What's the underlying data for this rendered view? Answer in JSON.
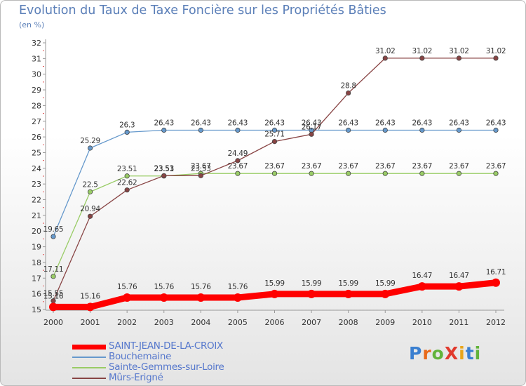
{
  "title": "Evolution du Taux de Taxe Foncière sur les Propriétés Bâties",
  "unit_label": "(en %)",
  "logo": {
    "text": "ProXiti",
    "letters": [
      "P",
      "r",
      "o",
      "X",
      "i",
      "t",
      "i"
    ],
    "colors": [
      "#3a7fd0",
      "#e96a1a",
      "#62b33b",
      "#e13a2e",
      "#e9a51a",
      "#3a7fd0",
      "#62b33b"
    ]
  },
  "chart_data": {
    "type": "line",
    "title": "Evolution du Taux de Taxe Foncière sur les Propriétés Bâties",
    "ylabel": "(en %)",
    "xlabel": "",
    "x": [
      "2000",
      "2001",
      "2002",
      "2003",
      "2004",
      "2005",
      "2006",
      "2007",
      "2008",
      "2009",
      "2010",
      "2011",
      "2012"
    ],
    "ylim": [
      15,
      32
    ],
    "yticks": [
      "15",
      "16",
      "17",
      "18",
      "19",
      "20",
      "21",
      "22",
      "23",
      "24",
      "25",
      "26",
      "27",
      "28",
      "29",
      "30",
      "31",
      "32"
    ],
    "grid": false,
    "series": [
      {
        "name": "SAINT-JEAN-DE-LA-CROIX",
        "color": "#ff0000",
        "values": [
          15.16,
          15.16,
          15.76,
          15.76,
          15.76,
          15.76,
          15.99,
          15.99,
          15.99,
          15.99,
          16.47,
          16.47,
          16.71
        ],
        "labels": [
          "15.16",
          "15.16",
          "15.76",
          "15.76",
          "15.76",
          "15.76",
          "15.99",
          "15.99",
          "15.99",
          "15.99",
          "16.47",
          "16.47",
          "16.71"
        ]
      },
      {
        "name": "Bouchemaine",
        "color": "#6699cc",
        "values": [
          19.65,
          25.29,
          26.3,
          26.43,
          26.43,
          26.43,
          26.43,
          26.43,
          26.43,
          26.43,
          26.43,
          26.43,
          26.43
        ],
        "labels": [
          "19.65",
          "25.29",
          "26.3",
          "26.43",
          "26.43",
          "26.43",
          "26.43",
          "26.43",
          "26.43",
          "26.43",
          "26.43",
          "26.43",
          "26.43"
        ]
      },
      {
        "name": "Sainte-Gemmes-sur-Loire",
        "color": "#99cc66",
        "values": [
          17.11,
          22.5,
          23.51,
          23.51,
          23.67,
          23.67,
          23.67,
          23.67,
          23.67,
          23.67,
          23.67,
          23.67,
          23.67
        ],
        "labels": [
          "17.11",
          "22.5",
          "23.51",
          "23.51",
          "23.67",
          "23.67",
          "23.67",
          "23.67",
          "23.67",
          "23.67",
          "23.67",
          "23.67",
          "23.67"
        ]
      },
      {
        "name": "Mûrs-Erigné",
        "color": "#884444",
        "values": [
          15.55,
          20.94,
          22.62,
          23.53,
          23.53,
          24.49,
          25.71,
          26.17,
          28.8,
          31.02,
          31.02,
          31.02,
          31.02
        ],
        "labels": [
          "15.55",
          "20.94",
          "22.62",
          "23.53",
          "23.53",
          "24.49",
          "25.71",
          "26.17",
          "28.8",
          "31.02",
          "31.02",
          "31.02",
          "31.02"
        ]
      }
    ],
    "legend": {
      "position": "bottom-left"
    }
  }
}
